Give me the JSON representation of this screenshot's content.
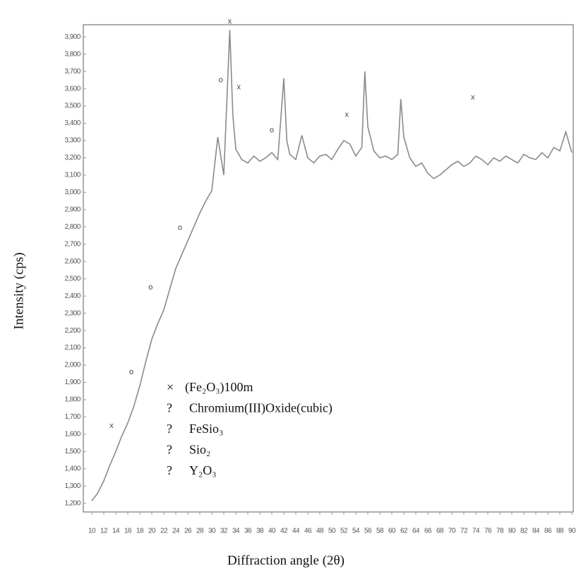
{
  "chart_data": {
    "type": "line",
    "xlabel": "Diffraction angle (2θ)",
    "ylabel": "Intensity (cps)",
    "xlim": [
      10,
      90
    ],
    "xticks": [
      10,
      12,
      14,
      16,
      18,
      20,
      22,
      24,
      26,
      28,
      30,
      32,
      34,
      36,
      38,
      40,
      42,
      44,
      46,
      48,
      50,
      52,
      54,
      56,
      58,
      60,
      62,
      64,
      66,
      68,
      70,
      72,
      74,
      76,
      78,
      80,
      82,
      84,
      86,
      88,
      90
    ],
    "ylim": [
      1150,
      3950
    ],
    "yticks": [
      {
        "value": 1200,
        "label": "1,200"
      },
      {
        "value": 1300,
        "label": "1,300"
      },
      {
        "value": 1400,
        "label": "1,400"
      },
      {
        "value": 1500,
        "label": "1,500"
      },
      {
        "value": 1600,
        "label": "1,600"
      },
      {
        "value": 1700,
        "label": "1,700"
      },
      {
        "value": 1800,
        "label": "1,800"
      },
      {
        "value": 1900,
        "label": "1,900"
      },
      {
        "value": 2000,
        "label": "2,000"
      },
      {
        "value": 2100,
        "label": "2,100"
      },
      {
        "value": 2200,
        "label": "2,200"
      },
      {
        "value": 2300,
        "label": "2,300"
      },
      {
        "value": 2400,
        "label": "2,400"
      },
      {
        "value": 2500,
        "label": "2,500"
      },
      {
        "value": 2600,
        "label": "2,600"
      },
      {
        "value": 2700,
        "label": "2,700"
      },
      {
        "value": 2800,
        "label": "2,800"
      },
      {
        "value": 2900,
        "label": "2,900"
      },
      {
        "value": 3000,
        "label": "3,000"
      },
      {
        "value": 3100,
        "label": "3,100"
      },
      {
        "value": 3200,
        "label": "3,200"
      },
      {
        "value": 3300,
        "label": "3,300"
      },
      {
        "value": 3400,
        "label": "3,400"
      },
      {
        "value": 3500,
        "label": "3,500"
      },
      {
        "value": 3600,
        "label": "3,600"
      },
      {
        "value": 3700,
        "label": "3,700"
      },
      {
        "value": 3800,
        "label": "3,800"
      },
      {
        "value": 3900,
        "label": "3,900"
      }
    ],
    "color": "#8a8a8a",
    "x": [
      10,
      11,
      12,
      13,
      14,
      15,
      16,
      17,
      18,
      19,
      20,
      21,
      22,
      23,
      24,
      25,
      26,
      27,
      28,
      29,
      30,
      31,
      32,
      33,
      33.5,
      34,
      35,
      36,
      37,
      38,
      39,
      40,
      41,
      42,
      42.5,
      43,
      44,
      45,
      46,
      47,
      48,
      49,
      50,
      51,
      52,
      53,
      54,
      55,
      55.5,
      56,
      57,
      58,
      59,
      60,
      61,
      61.5,
      62,
      63,
      64,
      65,
      66,
      67,
      68,
      69,
      70,
      71,
      72,
      73,
      74,
      75,
      76,
      77,
      78,
      79,
      80,
      81,
      82,
      83,
      84,
      85,
      86,
      87,
      88,
      89,
      90
    ],
    "values": [
      1215,
      1260,
      1330,
      1420,
      1500,
      1590,
      1665,
      1760,
      1880,
      2020,
      2150,
      2240,
      2320,
      2440,
      2560,
      2640,
      2720,
      2800,
      2880,
      2950,
      3010,
      3320,
      3100,
      3940,
      3450,
      3250,
      3190,
      3170,
      3210,
      3180,
      3200,
      3230,
      3190,
      3660,
      3300,
      3220,
      3190,
      3330,
      3200,
      3170,
      3210,
      3220,
      3190,
      3250,
      3300,
      3280,
      3210,
      3260,
      3700,
      3380,
      3240,
      3200,
      3210,
      3190,
      3220,
      3540,
      3320,
      3200,
      3150,
      3170,
      3110,
      3080,
      3100,
      3130,
      3160,
      3180,
      3150,
      3170,
      3210,
      3190,
      3160,
      3200,
      3180,
      3210,
      3190,
      3170,
      3220,
      3200,
      3190,
      3230,
      3200,
      3260,
      3240,
      3350,
      3230
    ],
    "annotations": [
      {
        "text": "x",
        "x": 33,
        "y": 3940
      },
      {
        "text": "o",
        "x": 31.5,
        "y": 3600
      },
      {
        "text": "x",
        "x": 34.5,
        "y": 3560
      },
      {
        "text": "o",
        "x": 40,
        "y": 3310
      },
      {
        "text": "x",
        "x": 52.5,
        "y": 3400
      },
      {
        "text": "x",
        "x": 73.5,
        "y": 3500
      },
      {
        "text": "o",
        "x": 24.7,
        "y": 2745
      },
      {
        "text": "o",
        "x": 19.8,
        "y": 2400
      },
      {
        "text": "o",
        "x": 16.6,
        "y": 1910
      },
      {
        "text": "x",
        "x": 13.3,
        "y": 1600
      }
    ],
    "legend": [
      {
        "symbol": "×",
        "label": "(Fe₂O₃)100m"
      },
      {
        "symbol": "?",
        "label": "Chromium(III)Oxide(cubic)"
      },
      {
        "symbol": "?",
        "label": "FeSio₃"
      },
      {
        "symbol": "?",
        "label": "Sio₂"
      },
      {
        "symbol": "?",
        "label": "Y₂O₃"
      }
    ]
  }
}
